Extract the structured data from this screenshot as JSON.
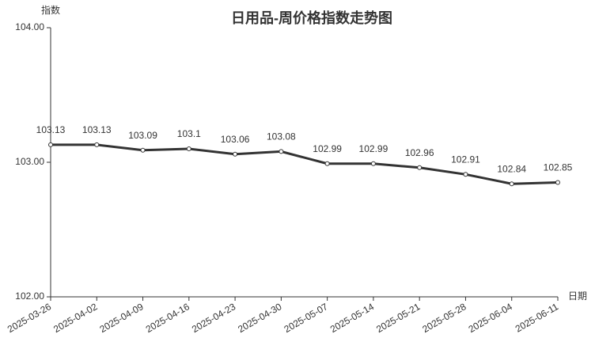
{
  "chart_data": {
    "type": "line",
    "title": "日用品-周价格指数走势图",
    "y_label": "指数",
    "x_label": "日期",
    "categories": [
      "2025-03-26",
      "2025-04-02",
      "2025-04-09",
      "2025-04-16",
      "2025-04-23",
      "2025-04-30",
      "2025-05-07",
      "2025-05-14",
      "2025-05-21",
      "2025-05-28",
      "2025-06-04",
      "2025-06-11"
    ],
    "series": [
      {
        "name": "指数",
        "color": "#333333",
        "values": [
          103.13,
          103.13,
          103.09,
          103.1,
          103.06,
          103.08,
          102.99,
          102.99,
          102.96,
          102.91,
          102.84,
          102.85
        ]
      }
    ],
    "ylim": [
      102,
      104
    ],
    "yticks": [
      {
        "value": 102,
        "label": "102.00"
      },
      {
        "value": 103,
        "label": "103.00"
      },
      {
        "value": 104,
        "label": "104.00"
      }
    ],
    "grid": false
  }
}
